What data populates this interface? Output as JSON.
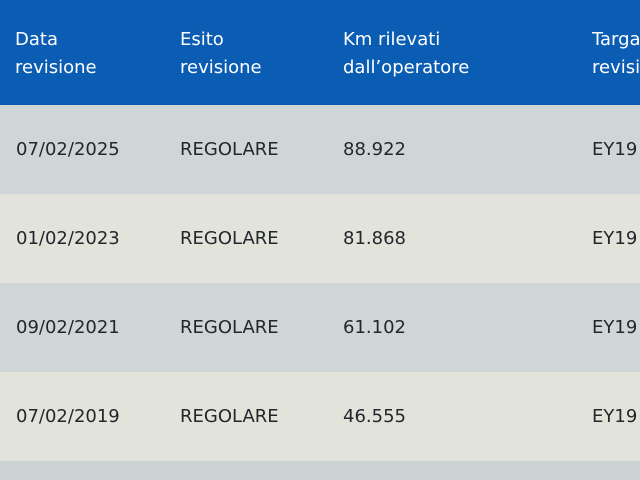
{
  "table": {
    "columns": [
      [
        "Data",
        "revisione"
      ],
      [
        "Esito",
        "revisione"
      ],
      [
        "Km rilevati",
        "dall’operatore"
      ],
      [
        "Targa",
        "revisi"
      ]
    ],
    "rows": [
      [
        "07/02/2025",
        "REGOLARE",
        "88.922",
        "EY19"
      ],
      [
        "01/02/2023",
        "REGOLARE",
        "81.868",
        "EY19"
      ],
      [
        "09/02/2021",
        "REGOLARE",
        "61.102",
        "EY19"
      ],
      [
        "07/02/2019",
        "REGOLARE",
        "46.555",
        "EY19"
      ]
    ]
  }
}
